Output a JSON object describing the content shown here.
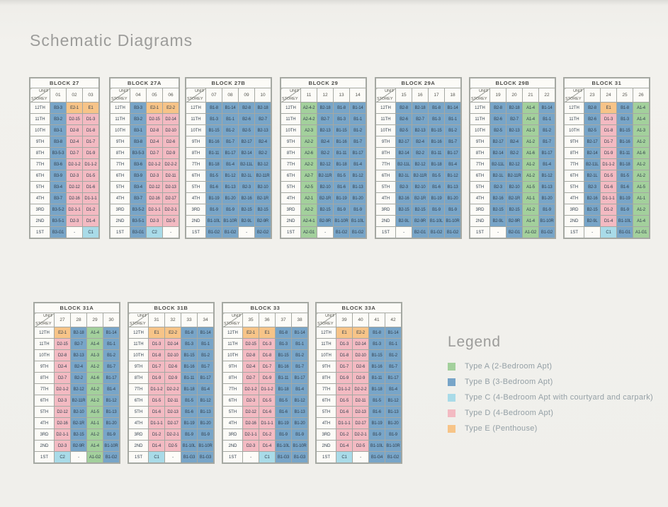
{
  "page": {
    "title": "Schematic Diagrams"
  },
  "legend": {
    "heading": "Legend",
    "items": [
      {
        "type": "A",
        "label": "Type A (2-Bedroom Apt)",
        "color": "#a3d09c"
      },
      {
        "type": "B",
        "label": "Type B (3-Bedroom Apt)",
        "color": "#78a5c8"
      },
      {
        "type": "C",
        "label": "Type C (4-Bedroom Apt with courtyard and carpark)",
        "color": "#a9dbe8"
      },
      {
        "type": "D",
        "label": "Type D (4-Bedroom Apt)",
        "color": "#f3bac2"
      },
      {
        "type": "E",
        "label": "Type E (Penthouse)",
        "color": "#f7c488"
      }
    ]
  },
  "table_header": {
    "unit": "UNIT",
    "storey": "STOREY"
  },
  "storeys": [
    "12TH",
    "11TH",
    "10TH",
    "9TH",
    "8TH",
    "7TH",
    "6TH",
    "5TH",
    "4TH",
    "3RD",
    "2ND",
    "1ST"
  ],
  "blocks": [
    {
      "name": "BLOCK 27",
      "units": [
        "01",
        "02",
        "03"
      ],
      "rows": [
        [
          "B3-3",
          "E2-1",
          "E1"
        ],
        [
          "B3-2",
          "D2-15",
          "D1-3"
        ],
        [
          "B3-1",
          "D2-8",
          "D1-8"
        ],
        [
          "B3-8",
          "D2-4",
          "D1-7"
        ],
        [
          "B3-5-3",
          "D2-7",
          "D1-9"
        ],
        [
          "B3-6",
          "D2-1-2",
          "D1-1-2"
        ],
        [
          "B3-9",
          "D2-3",
          "D1-5"
        ],
        [
          "B3-4",
          "D2-12",
          "D1-6"
        ],
        [
          "B3-7",
          "D2-16",
          "D1-1-1"
        ],
        [
          "B3-5-2",
          "D2-1-1",
          "D1-2"
        ],
        [
          "B3-5-1",
          "D2-3",
          "D1-4"
        ],
        [
          "B3-G1",
          "-",
          "C1"
        ]
      ]
    },
    {
      "name": "BLOCK 27A",
      "units": [
        "04",
        "05",
        "06"
      ],
      "rows": [
        [
          "B3-3",
          "E2-1",
          "E2-2"
        ],
        [
          "B3-2",
          "D2-15",
          "D2-14"
        ],
        [
          "B3-1",
          "D2-8",
          "D2-10"
        ],
        [
          "B3-8",
          "D2-4",
          "D2-6"
        ],
        [
          "B3-5-3",
          "D2-7",
          "D2-9"
        ],
        [
          "B3-6",
          "D2-1-2",
          "D2-2-2"
        ],
        [
          "B3-9",
          "D2-3",
          "D2-11"
        ],
        [
          "B3-4",
          "D2-12",
          "D2-13"
        ],
        [
          "B3-7",
          "D2-16",
          "D2-17"
        ],
        [
          "B3-5-2",
          "D2-1-1",
          "D2-2-1"
        ],
        [
          "B3-5-1",
          "D2-3",
          "D2-5"
        ],
        [
          "B3-G1",
          "C2",
          "-"
        ]
      ]
    },
    {
      "name": "BLOCK 27B",
      "units": [
        "07",
        "08",
        "09",
        "10"
      ],
      "rows": [
        [
          "B1-8",
          "B1-14",
          "B2-8",
          "B2-18"
        ],
        [
          "B1-3",
          "B1-1",
          "B2-6",
          "B2-7"
        ],
        [
          "B1-15",
          "B1-2",
          "B2-5",
          "B2-13"
        ],
        [
          "B1-16",
          "B1-7",
          "B2-17",
          "B2-4"
        ],
        [
          "B1-11",
          "B1-17",
          "B2-14",
          "B2-2"
        ],
        [
          "B1-18",
          "B1-4",
          "B2-11L",
          "B2-12"
        ],
        [
          "B1-5",
          "B1-12",
          "B2-1L",
          "B2-11R"
        ],
        [
          "B1-6",
          "B1-13",
          "B2-3",
          "B2-10"
        ],
        [
          "B1-19",
          "B1-20",
          "B2-16",
          "B2-1R"
        ],
        [
          "B1-9",
          "B1-9",
          "B2-15",
          "B2-15"
        ],
        [
          "B1-10L",
          "B1-10R",
          "B2-9L",
          "B2-9R"
        ],
        [
          "B1-G2",
          "B1-G2",
          "-",
          "B2-G2"
        ]
      ]
    },
    {
      "name": "BLOCK 29",
      "units": [
        "11",
        "12",
        "13",
        "14"
      ],
      "rows": [
        [
          "A2-4-2",
          "B2-18",
          "B1-8",
          "B1-14"
        ],
        [
          "A2-4-2",
          "B2-7",
          "B1-3",
          "B1-1"
        ],
        [
          "A2-3",
          "B2-13",
          "B1-15",
          "B1-2"
        ],
        [
          "A2-2",
          "B2-4",
          "B1-16",
          "B1-7"
        ],
        [
          "A2-6",
          "B2-2",
          "B1-11",
          "B1-17"
        ],
        [
          "A2-2",
          "B2-12",
          "B1-18",
          "B1-4"
        ],
        [
          "A2-7",
          "B2-11R",
          "B1-5",
          "B1-12"
        ],
        [
          "A2-5",
          "B2-10",
          "B1-6",
          "B1-13"
        ],
        [
          "A2-1",
          "B2-1R",
          "B1-19",
          "B1-20"
        ],
        [
          "A2-2",
          "B2-15",
          "B1-9",
          "B1-9"
        ],
        [
          "A2-4-1",
          "B2-9R",
          "B1-10R",
          "B1-10L"
        ],
        [
          "A2-G1",
          "-",
          "B1-G2",
          "B1-G2"
        ]
      ]
    },
    {
      "name": "BLOCK 29A",
      "units": [
        "15",
        "16",
        "17",
        "18"
      ],
      "rows": [
        [
          "B2-8",
          "B2-18",
          "B1-8",
          "B1-14"
        ],
        [
          "B2-6",
          "B2-7",
          "B1-3",
          "B1-1"
        ],
        [
          "B2-5",
          "B2-13",
          "B1-15",
          "B1-2"
        ],
        [
          "B2-17",
          "B2-4",
          "B1-16",
          "B1-7"
        ],
        [
          "B2-14",
          "B2-2",
          "B1-11",
          "B1-17"
        ],
        [
          "B2-11L",
          "B2-12",
          "B1-18",
          "B1-4"
        ],
        [
          "B2-1L",
          "B2-11R",
          "B1-5",
          "B1-12"
        ],
        [
          "B2-3",
          "B2-10",
          "B1-6",
          "B1-13"
        ],
        [
          "B2-16",
          "B2-1R",
          "B1-19",
          "B1-20"
        ],
        [
          "B2-15",
          "B2-15",
          "B1-9",
          "B1-9"
        ],
        [
          "B2-9L",
          "B2-9R",
          "B1-10L",
          "B1-10R"
        ],
        [
          "-",
          "B2-G1",
          "B1-G2",
          "B1-G2"
        ]
      ]
    },
    {
      "name": "BLOCK 29B",
      "units": [
        "19",
        "20",
        "21",
        "22"
      ],
      "rows": [
        [
          "B2-8",
          "B2-18",
          "A1-4",
          "B1-14"
        ],
        [
          "B2-6",
          "B2-7",
          "A1-4",
          "B1-1"
        ],
        [
          "B2-5",
          "B2-13",
          "A1-3",
          "B1-2"
        ],
        [
          "B2-17",
          "B2-4",
          "A1-2",
          "B1-7"
        ],
        [
          "B2-14",
          "B2-2",
          "A1-6",
          "B1-17"
        ],
        [
          "B2-11L",
          "B2-12",
          "A1-2",
          "B1-4"
        ],
        [
          "B2-1L",
          "B2-11R",
          "A1-2",
          "B1-12"
        ],
        [
          "B2-3",
          "B2-10",
          "A1-5",
          "B1-13"
        ],
        [
          "B2-16",
          "B2-1R",
          "A1-1",
          "B1-20"
        ],
        [
          "B2-15",
          "B2-15",
          "A1-2",
          "B1-9"
        ],
        [
          "B2-9L",
          "B2-9R",
          "A1-4",
          "B1-10R"
        ],
        [
          "-",
          "B2-G1",
          "A1-G2",
          "B1-G2"
        ]
      ]
    },
    {
      "name": "BLOCK 31",
      "units": [
        "23",
        "24",
        "25",
        "26"
      ],
      "rows": [
        [
          "B2-8",
          "E1",
          "B1-8",
          "A1-4"
        ],
        [
          "B2-6",
          "D1-3",
          "B1-3",
          "A1-4"
        ],
        [
          "B2-5",
          "D1-8",
          "B1-15",
          "A1-3"
        ],
        [
          "B2-17",
          "D1-7",
          "B1-16",
          "A1-2"
        ],
        [
          "B2-14",
          "D1-9",
          "B1-11",
          "A1-6"
        ],
        [
          "B2-11L",
          "D1-1-2",
          "B1-18",
          "A1-2"
        ],
        [
          "B2-1L",
          "D1-5",
          "B1-5",
          "A1-2"
        ],
        [
          "B2-3",
          "D1-6",
          "B1-6",
          "A1-5"
        ],
        [
          "B2-16",
          "D1-1-1",
          "B1-19",
          "A1-1"
        ],
        [
          "B2-15",
          "D1-2",
          "B1-9",
          "A1-2"
        ],
        [
          "B2-9L",
          "D1-4",
          "B1-10L",
          "A1-4"
        ],
        [
          "-",
          "C1",
          "B1-G1",
          "A1-G1"
        ]
      ]
    },
    {
      "name": "BLOCK 31A",
      "units": [
        "27",
        "28",
        "29",
        "30"
      ],
      "rows": [
        [
          "E2-1",
          "B2-18",
          "A1-4",
          "B1-14"
        ],
        [
          "D2-15",
          "B2-7",
          "A1-4",
          "B1-1"
        ],
        [
          "D2-8",
          "B2-13",
          "A1-3",
          "B1-2"
        ],
        [
          "D2-4",
          "B2-4",
          "A1-2",
          "B1-7"
        ],
        [
          "D2-7",
          "B2-2",
          "A1-6",
          "B1-17"
        ],
        [
          "D2-1-2",
          "B2-12",
          "A1-2",
          "B1-4"
        ],
        [
          "D2-3",
          "B2-11R",
          "A1-2",
          "B1-12"
        ],
        [
          "D2-12",
          "B2-10",
          "A1-5",
          "B1-13"
        ],
        [
          "D2-16",
          "B2-1R",
          "A1-1",
          "B1-20"
        ],
        [
          "D2-1-1",
          "B2-15",
          "A1-2",
          "B1-9"
        ],
        [
          "D2-3",
          "B2-9R",
          "A1-4",
          "B1-10R"
        ],
        [
          "C2",
          "-",
          "A1-G2",
          "B1-G2"
        ]
      ]
    },
    {
      "name": "BLOCK 31B",
      "units": [
        "31",
        "32",
        "33",
        "34"
      ],
      "rows": [
        [
          "E1",
          "E2-2",
          "B1-8",
          "B1-14"
        ],
        [
          "D1-3",
          "D2-14",
          "B1-3",
          "B1-1"
        ],
        [
          "D1-8",
          "D2-10",
          "B1-15",
          "B1-2"
        ],
        [
          "D1-7",
          "D2-6",
          "B1-16",
          "B1-7"
        ],
        [
          "D1-9",
          "D2-9",
          "B1-11",
          "B1-17"
        ],
        [
          "D1-1-2",
          "D2-2-2",
          "B1-18",
          "B1-4"
        ],
        [
          "D1-5",
          "D2-11",
          "B1-5",
          "B1-12"
        ],
        [
          "D1-6",
          "D2-13",
          "B1-6",
          "B1-13"
        ],
        [
          "D1-1-1",
          "D2-17",
          "B1-19",
          "B1-20"
        ],
        [
          "D1-2",
          "D2-2-1",
          "B1-9",
          "B1-9"
        ],
        [
          "D1-4",
          "D2-5",
          "B1-10L",
          "B1-10R"
        ],
        [
          "C1",
          "-",
          "B1-G3",
          "B1-G3"
        ]
      ]
    },
    {
      "name": "BLOCK 33",
      "units": [
        "35",
        "36",
        "37",
        "38"
      ],
      "rows": [
        [
          "E2-1",
          "E1",
          "B1-8",
          "B1-14"
        ],
        [
          "D2-15",
          "D1-3",
          "B1-3",
          "B1-1"
        ],
        [
          "D2-8",
          "D1-8",
          "B1-15",
          "B1-2"
        ],
        [
          "D2-4",
          "D1-7",
          "B1-16",
          "B1-7"
        ],
        [
          "D2-7",
          "D1-9",
          "B1-11",
          "B1-17"
        ],
        [
          "D2-1-2",
          "D1-1-2",
          "B1-18",
          "B1-4"
        ],
        [
          "D2-3",
          "D1-5",
          "B1-5",
          "B1-12"
        ],
        [
          "D2-12",
          "D1-6",
          "B1-6",
          "B1-13"
        ],
        [
          "D2-16",
          "D1-1-1",
          "B1-19",
          "B1-20"
        ],
        [
          "D2-1-1",
          "D1-2",
          "B1-9",
          "B1-9"
        ],
        [
          "D2-3",
          "D1-4",
          "B1-10L",
          "B1-10R"
        ],
        [
          "-",
          "C1",
          "B1-G3",
          "B1-G3"
        ]
      ]
    },
    {
      "name": "BLOCK 33A",
      "units": [
        "39",
        "40",
        "41",
        "42"
      ],
      "rows": [
        [
          "E1",
          "E2-2",
          "B1-8",
          "B1-14"
        ],
        [
          "D1-3",
          "D2-14",
          "B1-3",
          "B1-1"
        ],
        [
          "D1-8",
          "D2-10",
          "B1-15",
          "B1-2"
        ],
        [
          "D1-7",
          "D2-6",
          "B1-16",
          "B1-7"
        ],
        [
          "D1-9",
          "D2-9",
          "B1-11",
          "B1-17"
        ],
        [
          "D1-1-2",
          "D2-2-2",
          "B1-18",
          "B1-4"
        ],
        [
          "D1-5",
          "D2-11",
          "B1-5",
          "B1-12"
        ],
        [
          "D1-6",
          "D2-13",
          "B1-6",
          "B1-13"
        ],
        [
          "D1-1-1",
          "D2-17",
          "B1-19",
          "B1-20"
        ],
        [
          "D1-2",
          "D2-2-1",
          "B1-9",
          "B1-9"
        ],
        [
          "D1-4",
          "D2-5",
          "B1-10L",
          "B1-10R"
        ],
        [
          "C1",
          "-",
          "B1-G4",
          "B1-G2"
        ]
      ]
    }
  ]
}
